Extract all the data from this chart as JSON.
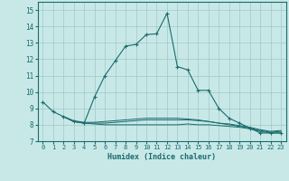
{
  "xlabel": "Humidex (Indice chaleur)",
  "bg_color": "#c8e8e8",
  "grid_color": "#a0c8c8",
  "line_color": "#1a6b6b",
  "xlim": [
    -0.5,
    23.5
  ],
  "ylim": [
    7,
    15.5
  ],
  "yticks": [
    7,
    8,
    9,
    10,
    11,
    12,
    13,
    14,
    15
  ],
  "xticks": [
    0,
    1,
    2,
    3,
    4,
    5,
    6,
    7,
    8,
    9,
    10,
    11,
    12,
    13,
    14,
    15,
    16,
    17,
    18,
    19,
    20,
    21,
    22,
    23
  ],
  "main_line": {
    "x": [
      0,
      1,
      2,
      3,
      4,
      5,
      6,
      7,
      8,
      9,
      10,
      11,
      12,
      13,
      14,
      15,
      16,
      17,
      18,
      19,
      20,
      21,
      22,
      23
    ],
    "y": [
      9.4,
      8.8,
      8.5,
      8.2,
      8.1,
      9.7,
      11.0,
      11.9,
      12.8,
      12.9,
      13.5,
      13.55,
      14.8,
      11.55,
      11.35,
      10.1,
      10.1,
      9.0,
      8.4,
      8.1,
      7.8,
      7.5,
      7.5,
      7.5
    ]
  },
  "flat_lines": [
    {
      "x": [
        2,
        3,
        4,
        5,
        6,
        7,
        8,
        9,
        10,
        11,
        12,
        13,
        14,
        15,
        16,
        17,
        18,
        19,
        20,
        21,
        22,
        23
      ],
      "y": [
        8.5,
        8.2,
        8.1,
        8.05,
        8.0,
        8.0,
        8.0,
        8.0,
        8.0,
        8.0,
        8.0,
        8.0,
        8.05,
        8.0,
        8.0,
        7.95,
        7.9,
        7.85,
        7.75,
        7.6,
        7.5,
        7.5
      ]
    },
    {
      "x": [
        2,
        3,
        4,
        5,
        6,
        7,
        8,
        9,
        10,
        11,
        12,
        13,
        14,
        15,
        16,
        17,
        18,
        19,
        20,
        21,
        22,
        23
      ],
      "y": [
        8.5,
        8.2,
        8.1,
        8.1,
        8.1,
        8.15,
        8.2,
        8.25,
        8.3,
        8.3,
        8.3,
        8.3,
        8.3,
        8.25,
        8.2,
        8.1,
        8.0,
        7.9,
        7.8,
        7.65,
        7.55,
        7.6
      ]
    },
    {
      "x": [
        2,
        3,
        4,
        5,
        6,
        7,
        8,
        9,
        10,
        11,
        12,
        13,
        14,
        15,
        16,
        17,
        18,
        19,
        20,
        21,
        22,
        23
      ],
      "y": [
        8.5,
        8.25,
        8.15,
        8.15,
        8.2,
        8.25,
        8.3,
        8.35,
        8.4,
        8.4,
        8.4,
        8.4,
        8.35,
        8.3,
        8.2,
        8.1,
        8.05,
        7.95,
        7.85,
        7.7,
        7.6,
        7.65
      ]
    }
  ]
}
